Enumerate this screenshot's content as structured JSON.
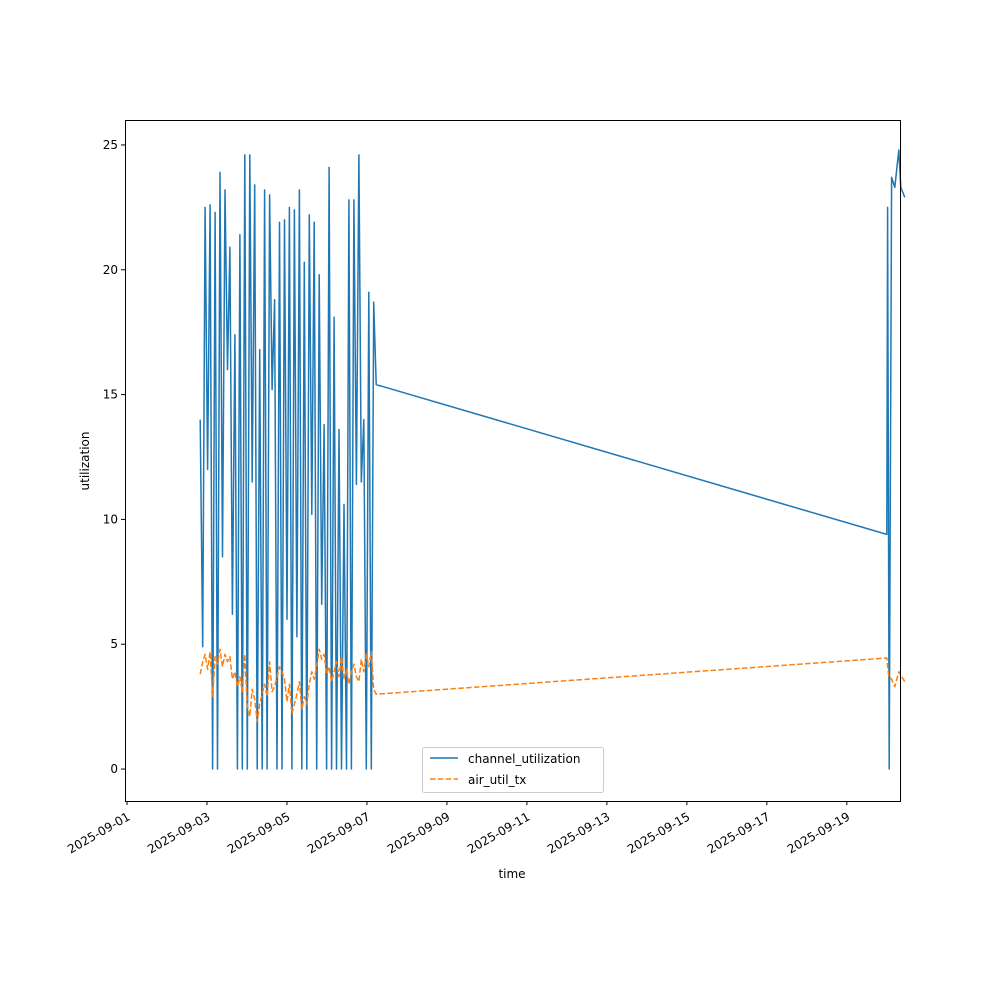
{
  "chart_data": {
    "type": "line",
    "title": "",
    "xlabel": "time",
    "ylabel": "utilization",
    "x_unit": "days since 2025-09-01",
    "xlim": [
      -0.05,
      19.33
    ],
    "ylim": [
      -1.28,
      26.0
    ],
    "xticks": [
      0,
      2,
      4,
      6,
      8,
      10,
      12,
      14,
      16,
      18
    ],
    "xtick_labels": [
      "2025-09-01",
      "2025-09-03",
      "2025-09-05",
      "2025-09-07",
      "2025-09-09",
      "2025-09-11",
      "2025-09-13",
      "2025-09-15",
      "2025-09-17",
      "2025-09-19"
    ],
    "yticks": [
      0,
      5,
      10,
      15,
      20,
      25
    ],
    "ytick_labels": [
      "0",
      "5",
      "10",
      "15",
      "20",
      "25"
    ],
    "grid": false,
    "legend_placement": "lower-center",
    "dense_x_start": 1.83,
    "dense_x_step": 0.062,
    "series": [
      {
        "name": "channel_utilization",
        "color": "#1f77b4",
        "style": "solid",
        "dense_values": [
          14,
          4.9,
          22.5,
          12,
          22.6,
          0,
          22.3,
          0,
          23.9,
          8.5,
          23.2,
          16,
          20.9,
          6.2,
          17.4,
          0,
          21.4,
          0,
          24.6,
          0,
          24.6,
          11.5,
          23.4,
          0,
          16.8,
          0,
          23.2,
          0,
          23.0,
          15.2,
          18.8,
          0,
          21.9,
          0,
          22,
          6,
          22.5,
          0,
          22.4,
          5.3,
          23.2,
          0,
          20.3,
          0,
          22.2,
          10.2,
          21.9,
          0,
          19.8,
          6.6,
          13.8,
          0,
          24.1,
          0,
          18.1,
          0,
          13.6,
          0,
          10.6,
          0,
          22.8,
          0,
          22.8,
          11.4,
          24.6,
          11.5,
          14,
          0,
          19.1,
          0,
          18.7,
          15.4
        ],
        "tail": [
          [
            19.0,
            9.4
          ],
          [
            19.02,
            22.5
          ],
          [
            19.06,
            0
          ],
          [
            19.12,
            23.7
          ],
          [
            19.2,
            23.3
          ],
          [
            19.3,
            24.8
          ],
          [
            19.35,
            23.3
          ],
          [
            19.45,
            22.9
          ]
        ]
      },
      {
        "name": "air_util_tx",
        "color": "#ff7f0e",
        "style": "dashed",
        "dense_values": [
          3.8,
          4.3,
          4.6,
          4.0,
          4.7,
          2.9,
          4.5,
          4.2,
          4.8,
          4.1,
          4.6,
          4.3,
          4.5,
          3.6,
          3.9,
          3.3,
          3.7,
          3.1,
          4.6,
          2.5,
          2.1,
          3.2,
          2.8,
          1.9,
          2.6,
          3.0,
          3.4,
          2.9,
          4.3,
          3.1,
          3.3,
          3.7,
          4.1,
          3.9,
          3.6,
          2.7,
          3.4,
          2.2,
          2.6,
          3.0,
          3.5,
          2.4,
          2.9,
          2.6,
          3.4,
          3.9,
          3.6,
          4.1,
          4.8,
          4.4,
          4.6,
          3.8,
          4.1,
          3.5,
          3.9,
          4.3,
          3.7,
          4.5,
          3.6,
          4.0,
          3.4,
          3.9,
          4.2,
          3.7,
          3.5,
          4.4,
          3.9,
          4.6,
          4.1,
          4.7,
          3.2,
          3.0
        ],
        "tail": [
          [
            19.0,
            4.45
          ],
          [
            19.05,
            3.7
          ],
          [
            19.12,
            3.6
          ],
          [
            19.2,
            3.3
          ],
          [
            19.3,
            3.9
          ],
          [
            19.45,
            3.5
          ]
        ]
      }
    ]
  }
}
